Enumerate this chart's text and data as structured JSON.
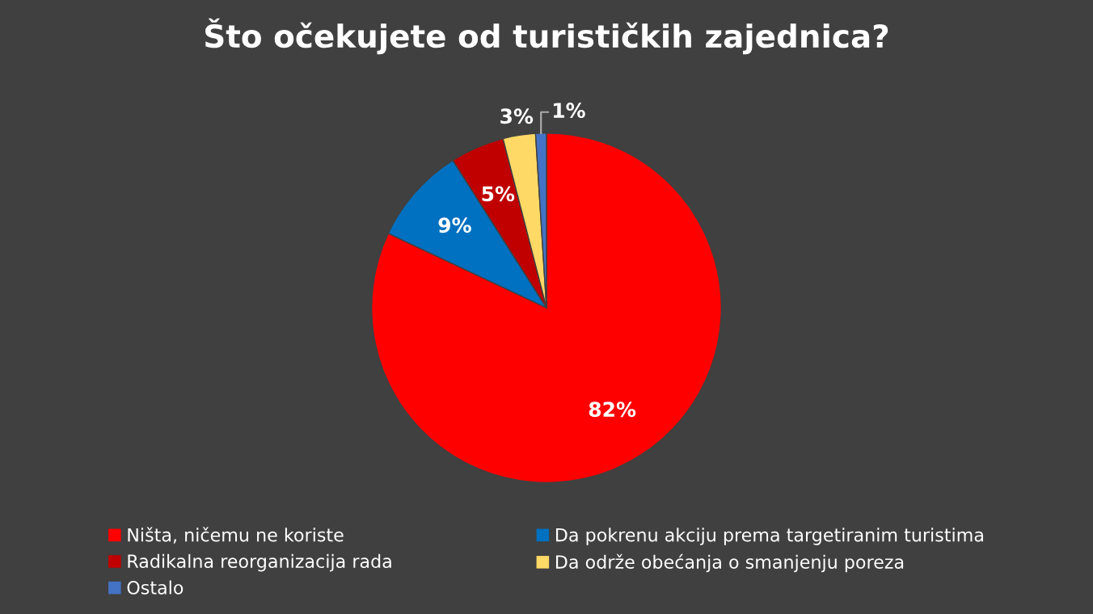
{
  "chart_data": {
    "type": "pie",
    "title": "Što očekujete od turističkih zajednica?",
    "categories": [
      "Ništa, ničemu ne koriste",
      "Da pokrenu akciju prema targetiranim turistima",
      "Radikalna reorganizacija rada",
      "Da održe obećanja o smanjenju poreza",
      "Ostalo"
    ],
    "values": [
      82,
      9,
      5,
      3,
      1
    ],
    "colors": [
      "#ff0000",
      "#0070c0",
      "#c00000",
      "#ffd966",
      "#4472c4"
    ],
    "value_labels": [
      "82%",
      "9%",
      "5%",
      "3%",
      "1%"
    ],
    "legend": "bottom"
  }
}
